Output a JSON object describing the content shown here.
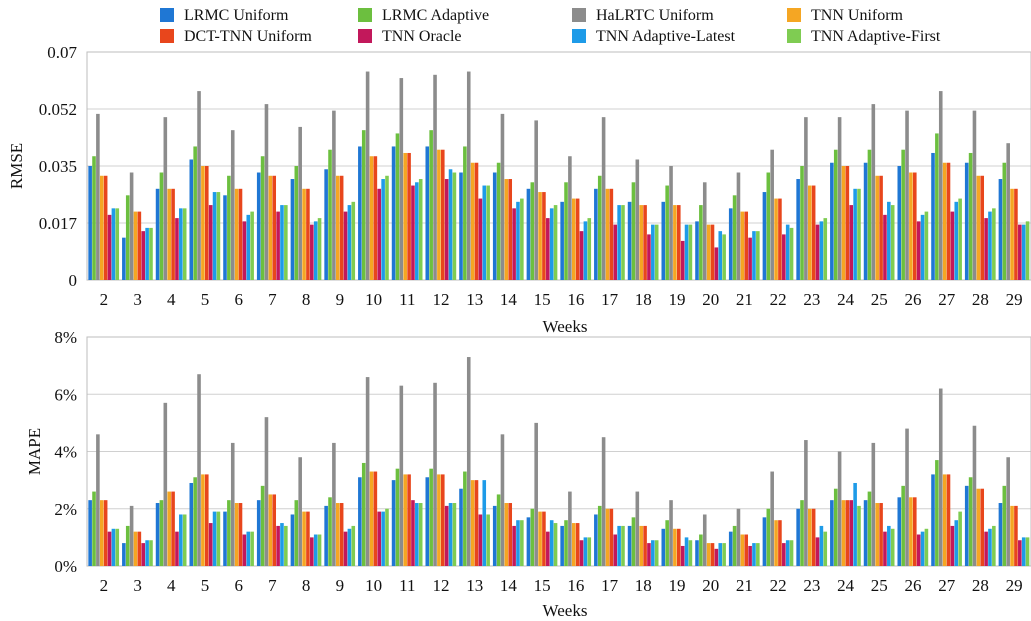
{
  "legend": [
    {
      "label": "LRMC Uniform",
      "color": "#1f77d4"
    },
    {
      "label": "LRMC Adaptive",
      "color": "#6cbf3f"
    },
    {
      "label": "HaLRTC Uniform",
      "color": "#8c8c8c"
    },
    {
      "label": "TNN Uniform",
      "color": "#f5a623"
    },
    {
      "label": "DCT-TNN Uniform",
      "color": "#e8461c"
    },
    {
      "label": "TNN Oracle",
      "color": "#c2185b"
    },
    {
      "label": "TNN Adaptive-Latest",
      "color": "#1e9be8"
    },
    {
      "label": "TNN Adaptive-First",
      "color": "#7fcc52"
    }
  ],
  "chart_data": [
    {
      "type": "bar",
      "ylabel": "RMSE",
      "xlabel": "Weeks",
      "ylim": [
        0,
        0.07
      ],
      "yticks": [
        "0",
        "0.017",
        "0.035",
        "0.052",
        "0.07"
      ],
      "ytick_values": [
        0,
        0.0175,
        0.035,
        0.0525,
        0.07
      ],
      "categories": [
        "2",
        "3",
        "4",
        "5",
        "6",
        "7",
        "8",
        "9",
        "10",
        "11",
        "12",
        "13",
        "14",
        "15",
        "16",
        "17",
        "18",
        "19",
        "20",
        "21",
        "22",
        "23",
        "24",
        "25",
        "26",
        "27",
        "28",
        "29"
      ],
      "series": [
        {
          "name": "LRMC Uniform",
          "values": [
            0.035,
            0.013,
            0.028,
            0.037,
            0.026,
            0.033,
            0.031,
            0.034,
            0.041,
            0.041,
            0.041,
            0.033,
            0.033,
            0.028,
            0.024,
            0.028,
            0.024,
            0.024,
            0.018,
            0.022,
            0.027,
            0.031,
            0.036,
            0.036,
            0.035,
            0.039,
            0.036,
            0.031
          ]
        },
        {
          "name": "LRMC Adaptive",
          "values": [
            0.038,
            0.026,
            0.033,
            0.041,
            0.032,
            0.038,
            0.035,
            0.04,
            0.046,
            0.045,
            0.046,
            0.041,
            0.036,
            0.03,
            0.03,
            0.032,
            0.03,
            0.029,
            0.023,
            0.026,
            0.033,
            0.035,
            0.04,
            0.04,
            0.04,
            0.045,
            0.039,
            0.036
          ]
        },
        {
          "name": "HaLRTC Uniform",
          "values": [
            0.051,
            0.033,
            0.05,
            0.058,
            0.046,
            0.054,
            0.047,
            0.052,
            0.064,
            0.062,
            0.063,
            0.064,
            0.051,
            0.049,
            0.038,
            0.05,
            0.037,
            0.035,
            0.03,
            0.033,
            0.04,
            0.05,
            0.05,
            0.054,
            0.052,
            0.058,
            0.052,
            0.042
          ]
        },
        {
          "name": "TNN Uniform",
          "values": [
            0.032,
            0.021,
            0.028,
            0.035,
            0.028,
            0.032,
            0.028,
            0.032,
            0.038,
            0.039,
            0.04,
            0.036,
            0.031,
            0.027,
            0.025,
            0.028,
            0.023,
            0.023,
            0.017,
            0.021,
            0.025,
            0.029,
            0.035,
            0.032,
            0.033,
            0.036,
            0.032,
            0.028
          ]
        },
        {
          "name": "DCT-TNN Uniform",
          "values": [
            0.032,
            0.021,
            0.028,
            0.035,
            0.028,
            0.032,
            0.028,
            0.032,
            0.038,
            0.039,
            0.04,
            0.036,
            0.031,
            0.027,
            0.025,
            0.028,
            0.023,
            0.023,
            0.017,
            0.021,
            0.025,
            0.029,
            0.035,
            0.032,
            0.033,
            0.036,
            0.032,
            0.028
          ]
        },
        {
          "name": "TNN Oracle",
          "values": [
            0.02,
            0.015,
            0.019,
            0.023,
            0.018,
            0.021,
            0.017,
            0.021,
            0.028,
            0.029,
            0.031,
            0.025,
            0.022,
            0.019,
            0.015,
            0.017,
            0.014,
            0.012,
            0.01,
            0.013,
            0.014,
            0.017,
            0.023,
            0.02,
            0.018,
            0.021,
            0.019,
            0.017
          ]
        },
        {
          "name": "TNN Adaptive-Latest",
          "values": [
            0.022,
            0.016,
            0.022,
            0.027,
            0.02,
            0.023,
            0.018,
            0.023,
            0.031,
            0.03,
            0.034,
            0.029,
            0.024,
            0.022,
            0.018,
            0.023,
            0.017,
            0.017,
            0.015,
            0.015,
            0.017,
            0.018,
            0.028,
            0.024,
            0.02,
            0.024,
            0.021,
            0.017
          ]
        },
        {
          "name": "TNN Adaptive-First",
          "values": [
            0.022,
            0.016,
            0.022,
            0.027,
            0.021,
            0.023,
            0.019,
            0.024,
            0.032,
            0.031,
            0.033,
            0.029,
            0.025,
            0.023,
            0.019,
            0.023,
            0.017,
            0.017,
            0.014,
            0.015,
            0.016,
            0.019,
            0.028,
            0.023,
            0.021,
            0.025,
            0.022,
            0.018
          ]
        }
      ]
    },
    {
      "type": "bar",
      "ylabel": "MAPE",
      "xlabel": "Weeks",
      "ylim": [
        0,
        8
      ],
      "yticks": [
        "0%",
        "2%",
        "4%",
        "6%",
        "8%"
      ],
      "ytick_values": [
        0,
        2,
        4,
        6,
        8
      ],
      "categories": [
        "2",
        "3",
        "4",
        "5",
        "6",
        "7",
        "8",
        "9",
        "10",
        "11",
        "12",
        "13",
        "14",
        "15",
        "16",
        "17",
        "18",
        "19",
        "20",
        "21",
        "22",
        "23",
        "24",
        "25",
        "26",
        "27",
        "28",
        "29"
      ],
      "series": [
        {
          "name": "LRMC Uniform",
          "values": [
            2.3,
            0.8,
            2.2,
            2.9,
            1.9,
            2.3,
            1.8,
            2.1,
            3.1,
            3.0,
            3.1,
            2.7,
            2.1,
            1.7,
            1.4,
            1.8,
            1.4,
            1.3,
            0.9,
            1.2,
            1.7,
            2.0,
            2.3,
            2.3,
            2.4,
            3.2,
            2.8,
            2.2
          ]
        },
        {
          "name": "LRMC Adaptive",
          "values": [
            2.6,
            1.4,
            2.3,
            3.1,
            2.3,
            2.8,
            2.3,
            2.4,
            3.6,
            3.4,
            3.4,
            3.3,
            2.5,
            2.0,
            1.6,
            2.1,
            1.7,
            1.6,
            1.1,
            1.4,
            2.0,
            2.3,
            2.7,
            2.6,
            2.8,
            3.7,
            3.1,
            2.8
          ]
        },
        {
          "name": "HaLRTC Uniform",
          "values": [
            4.6,
            2.1,
            5.7,
            6.7,
            4.3,
            5.2,
            3.8,
            4.3,
            6.6,
            6.3,
            6.4,
            7.3,
            4.6,
            5.0,
            2.6,
            4.5,
            2.6,
            2.3,
            1.8,
            2.0,
            3.3,
            4.4,
            4.0,
            4.3,
            4.8,
            6.2,
            4.9,
            3.8
          ]
        },
        {
          "name": "TNN Uniform",
          "values": [
            2.3,
            1.2,
            2.6,
            3.2,
            2.2,
            2.5,
            1.9,
            2.2,
            3.3,
            3.2,
            3.2,
            3.0,
            2.2,
            1.9,
            1.5,
            2.0,
            1.4,
            1.3,
            0.8,
            1.1,
            1.6,
            2.0,
            2.3,
            2.2,
            2.4,
            3.2,
            2.7,
            2.1
          ]
        },
        {
          "name": "DCT-TNN Uniform",
          "values": [
            2.3,
            1.2,
            2.6,
            3.2,
            2.2,
            2.5,
            1.9,
            2.2,
            3.3,
            3.2,
            3.2,
            3.0,
            2.2,
            1.9,
            1.5,
            2.0,
            1.4,
            1.3,
            0.8,
            1.1,
            1.6,
            2.0,
            2.3,
            2.2,
            2.4,
            3.2,
            2.7,
            2.1
          ]
        },
        {
          "name": "TNN Oracle",
          "values": [
            1.2,
            0.8,
            1.2,
            1.5,
            1.1,
            1.4,
            1.0,
            1.2,
            1.9,
            2.3,
            2.1,
            1.8,
            1.4,
            1.2,
            0.9,
            1.1,
            0.8,
            0.7,
            0.6,
            0.7,
            0.8,
            1.0,
            2.3,
            1.2,
            1.1,
            1.4,
            1.2,
            0.9
          ]
        },
        {
          "name": "TNN Adaptive-Latest",
          "values": [
            1.3,
            0.9,
            1.8,
            1.9,
            1.2,
            1.5,
            1.1,
            1.3,
            1.9,
            2.2,
            2.2,
            3.0,
            1.6,
            1.6,
            1.0,
            1.4,
            0.9,
            1.0,
            0.8,
            0.8,
            0.9,
            1.4,
            2.9,
            1.4,
            1.2,
            1.6,
            1.3,
            1.0
          ]
        },
        {
          "name": "TNN Adaptive-First",
          "values": [
            1.3,
            0.9,
            1.8,
            1.9,
            1.2,
            1.4,
            1.1,
            1.4,
            2.0,
            2.2,
            2.2,
            1.8,
            1.6,
            1.5,
            1.0,
            1.4,
            0.9,
            0.9,
            0.8,
            0.8,
            0.9,
            1.2,
            2.1,
            1.3,
            1.3,
            1.9,
            1.4,
            1.0
          ]
        }
      ]
    }
  ]
}
